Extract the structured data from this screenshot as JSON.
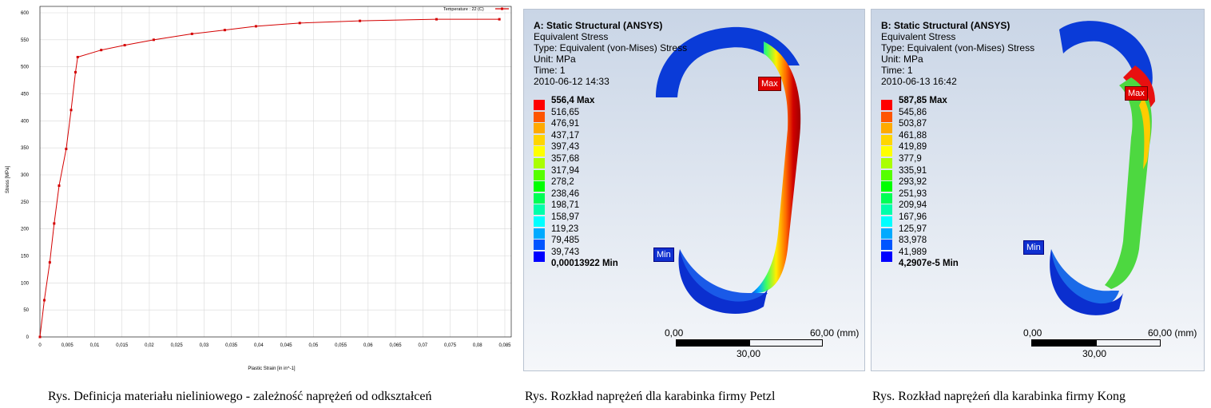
{
  "chart_data": {
    "type": "line",
    "title": "",
    "xlabel": "Plastic Strain  [in in^-1]",
    "ylabel": "Stress  [MPa]",
    "legend": "Temperature : 22 (C)",
    "legend_position": "top-right",
    "xlim": [
      0,
      0.085
    ],
    "ylim": [
      0,
      600
    ],
    "xticks": [
      "0",
      "0,005",
      "0,01",
      "0,015",
      "0,02",
      "0,025",
      "0,03",
      "0,035",
      "0,04",
      "0,045",
      "0,05",
      "0,055",
      "0,06",
      "0,065",
      "0,07",
      "0,075",
      "0,08",
      "0,085"
    ],
    "yticks": [
      "0",
      "50",
      "100",
      "150",
      "200",
      "250",
      "300",
      "350",
      "400",
      "450",
      "500",
      "550",
      "600"
    ],
    "grid": true,
    "color": "#d40000",
    "x": [
      0,
      0.0008,
      0.0018,
      0.0026,
      0.0035,
      0.0048,
      0.0057,
      0.0065,
      0.0069,
      0.0112,
      0.0155,
      0.0208,
      0.0278,
      0.0338,
      0.0395,
      0.0475,
      0.0585,
      0.0725,
      0.084
    ],
    "y": [
      0,
      68,
      138,
      210,
      280,
      348,
      420,
      490,
      518,
      531,
      540,
      550,
      561,
      568,
      575,
      581,
      585,
      588,
      588
    ]
  },
  "panels": [
    {
      "title": "A: Static Structural (ANSYS)",
      "result": "Equivalent Stress",
      "type": "Type: Equivalent (von-Mises) Stress",
      "unit": "Unit: MPa",
      "time": "Time: 1",
      "date": "2010-06-12 14:33",
      "legend": [
        "556,4 Max",
        "516,65",
        "476,91",
        "437,17",
        "397,43",
        "357,68",
        "317,94",
        "278,2",
        "238,46",
        "198,71",
        "158,97",
        "119,23",
        "79,485",
        "39,743",
        "0,00013922 Min"
      ],
      "max_label": "Max",
      "min_label": "Min",
      "scale": {
        "left": "0,00",
        "right": "60,00 (mm)",
        "mid": "30,00"
      }
    },
    {
      "title": "B: Static Structural (ANSYS)",
      "result": "Equivalent Stress",
      "type": "Type: Equivalent (von-Mises) Stress",
      "unit": "Unit: MPa",
      "time": "Time: 1",
      "date": "2010-06-13 16:42",
      "legend": [
        "587,85 Max",
        "545,86",
        "503,87",
        "461,88",
        "419,89",
        "377,9",
        "335,91",
        "293,92",
        "251,93",
        "209,94",
        "167,96",
        "125,97",
        "83,978",
        "41,989",
        "4,2907e-5 Min"
      ],
      "max_label": "Max",
      "min_label": "Min",
      "scale": {
        "left": "0,00",
        "right": "60,00 (mm)",
        "mid": "30,00"
      }
    }
  ],
  "legend_colors": [
    "#ff0000",
    "#ff5500",
    "#ffaa00",
    "#ffd500",
    "#ffff00",
    "#aaff00",
    "#55ff00",
    "#00ff00",
    "#00ff55",
    "#00ffaa",
    "#00ffff",
    "#00aaff",
    "#0055ff",
    "#0000ff"
  ],
  "captions": {
    "chart": "Rys. Definicja materiału nieliniowego - zależność naprężeń od odkształceń",
    "petzl": "Rys. Rozkład naprężeń dla karabinka firmy Petzl",
    "kong": "Rys. Rozkład naprężeń dla karabinka firmy Kong"
  }
}
